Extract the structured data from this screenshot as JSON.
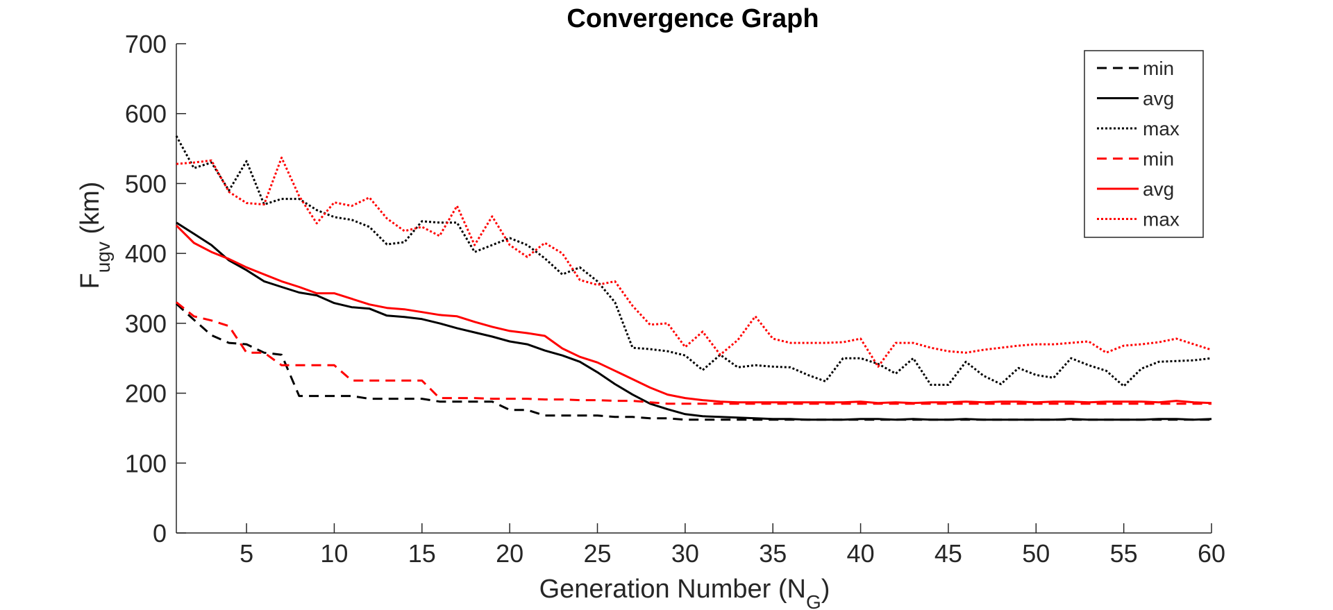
{
  "chart_data": {
    "type": "line",
    "title": "Convergence Graph",
    "xlabel": "Generation Number (N_G)",
    "xlabel_main": "Generation Number (N",
    "xlabel_sub": "G",
    "xlabel_close": ")",
    "ylabel_main": "F",
    "ylabel_sub": "ugv",
    "ylabel_rest": " (km)",
    "xlim": [
      1,
      60
    ],
    "ylim": [
      0,
      700
    ],
    "xticks": [
      5,
      10,
      15,
      20,
      25,
      30,
      35,
      40,
      45,
      50,
      55,
      60
    ],
    "yticks": [
      0,
      100,
      200,
      300,
      400,
      500,
      600,
      700
    ],
    "grid": false,
    "legend_position": "top-right",
    "x": [
      1,
      2,
      3,
      4,
      5,
      6,
      7,
      8,
      9,
      10,
      11,
      12,
      13,
      14,
      15,
      16,
      17,
      18,
      19,
      20,
      21,
      22,
      23,
      24,
      25,
      26,
      27,
      28,
      29,
      30,
      31,
      32,
      33,
      34,
      35,
      36,
      37,
      38,
      39,
      40,
      41,
      42,
      43,
      44,
      45,
      46,
      47,
      48,
      49,
      50,
      51,
      52,
      53,
      54,
      55,
      56,
      57,
      58,
      59,
      60
    ],
    "series": [
      {
        "name": "min",
        "color": "#000000",
        "dash": "dashed",
        "values": [
          328,
          305,
          283,
          272,
          270,
          258,
          255,
          196,
          196,
          196,
          196,
          192,
          192,
          192,
          192,
          188,
          188,
          188,
          188,
          176,
          176,
          168,
          168,
          168,
          168,
          166,
          166,
          164,
          164,
          162,
          162,
          162,
          162,
          162,
          162,
          162,
          162,
          162,
          162,
          162,
          162,
          162,
          162,
          162,
          162,
          162,
          162,
          162,
          162,
          162,
          162,
          162,
          162,
          162,
          162,
          162,
          162,
          162,
          162,
          162
        ]
      },
      {
        "name": "avg",
        "color": "#000000",
        "dash": "solid",
        "values": [
          444,
          428,
          412,
          390,
          376,
          360,
          352,
          344,
          340,
          329,
          323,
          321,
          311,
          309,
          306,
          300,
          293,
          287,
          281,
          274,
          270,
          261,
          254,
          245,
          230,
          213,
          198,
          185,
          177,
          170,
          167,
          166,
          165,
          164,
          163,
          163,
          162,
          162,
          162,
          163,
          163,
          162,
          163,
          162,
          162,
          163,
          162,
          162,
          162,
          162,
          162,
          163,
          162,
          162,
          162,
          162,
          163,
          163,
          162,
          163
        ]
      },
      {
        "name": "max",
        "color": "#000000",
        "dash": "dotted",
        "values": [
          568,
          522,
          530,
          490,
          532,
          470,
          478,
          478,
          462,
          452,
          448,
          438,
          413,
          416,
          446,
          444,
          444,
          402,
          412,
          422,
          412,
          393,
          370,
          380,
          360,
          330,
          265,
          263,
          260,
          254,
          233,
          255,
          237,
          240,
          238,
          237,
          226,
          217,
          250,
          250,
          242,
          228,
          250,
          212,
          212,
          245,
          225,
          213,
          236,
          226,
          222,
          250,
          240,
          232,
          210,
          235,
          245,
          246,
          247,
          250
        ]
      },
      {
        "name": "min",
        "color": "#ff0000",
        "dash": "dashed",
        "values": [
          330,
          310,
          304,
          296,
          258,
          258,
          240,
          240,
          240,
          240,
          218,
          218,
          218,
          218,
          218,
          193,
          193,
          193,
          192,
          192,
          192,
          191,
          191,
          190,
          190,
          189,
          189,
          187,
          185,
          185,
          185,
          185,
          185,
          185,
          185,
          185,
          185,
          185,
          185,
          185,
          185,
          185,
          185,
          185,
          185,
          185,
          185,
          185,
          185,
          185,
          185,
          185,
          185,
          185,
          185,
          185,
          185,
          185,
          185,
          185
        ]
      },
      {
        "name": "avg",
        "color": "#ff0000",
        "dash": "solid",
        "values": [
          440,
          415,
          402,
          392,
          380,
          370,
          360,
          352,
          343,
          343,
          335,
          327,
          322,
          320,
          316,
          312,
          310,
          302,
          295,
          289,
          286,
          282,
          264,
          252,
          244,
          232,
          220,
          208,
          198,
          193,
          190,
          188,
          187,
          187,
          187,
          187,
          187,
          187,
          187,
          188,
          186,
          187,
          186,
          187,
          187,
          188,
          187,
          188,
          188,
          187,
          188,
          188,
          187,
          188,
          188,
          188,
          187,
          189,
          187,
          186
        ]
      },
      {
        "name": "max",
        "color": "#ff0000",
        "dash": "dotted",
        "values": [
          528,
          530,
          533,
          488,
          472,
          470,
          537,
          482,
          443,
          473,
          468,
          480,
          450,
          432,
          438,
          425,
          468,
          412,
          453,
          412,
          395,
          415,
          400,
          362,
          355,
          360,
          325,
          298,
          300,
          266,
          288,
          255,
          276,
          310,
          278,
          272,
          272,
          272,
          273,
          278,
          238,
          272,
          272,
          265,
          260,
          258,
          262,
          265,
          268,
          270,
          270,
          272,
          274,
          258,
          268,
          270,
          273,
          278,
          270,
          262
        ]
      }
    ]
  }
}
